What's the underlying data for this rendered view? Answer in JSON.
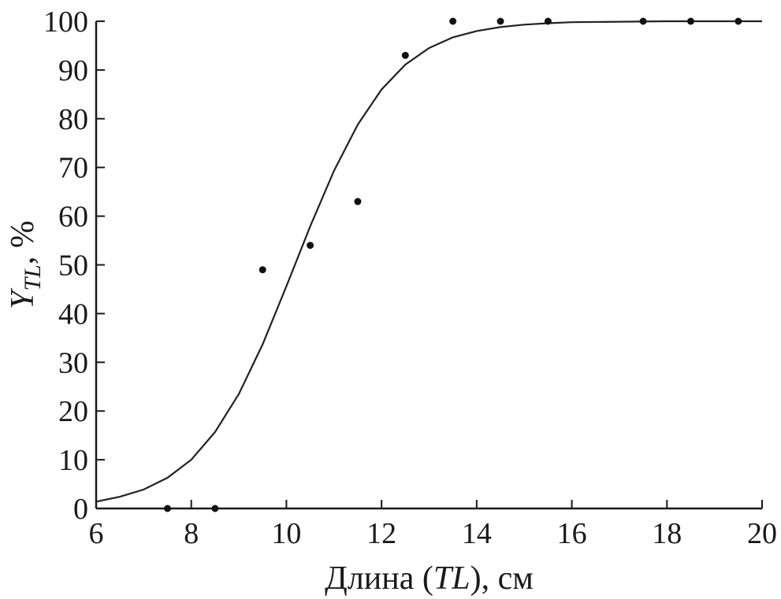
{
  "chart_data": {
    "type": "scatter",
    "title": "",
    "xlabel": {
      "prefix": "Длина (",
      "italic": "TL",
      "suffix": "), см"
    },
    "ylabel": {
      "main": "Y",
      "subscript": "TL",
      "suffix": ", %"
    },
    "xlim": [
      6,
      20
    ],
    "ylim": [
      0,
      100
    ],
    "x_ticks": [
      6,
      8,
      10,
      12,
      14,
      16,
      18,
      20
    ],
    "y_ticks": [
      0,
      10,
      20,
      30,
      40,
      50,
      60,
      70,
      80,
      90,
      100
    ],
    "grid": false,
    "series": [
      {
        "kind": "points",
        "x": [
          7.5,
          8.5,
          9.5,
          10.5,
          11.5,
          12.5,
          13.5,
          14.5,
          15.5,
          17.5,
          18.5,
          19.5
        ],
        "y": [
          0,
          0,
          49,
          54,
          63,
          93,
          100,
          100,
          100,
          100,
          100,
          100
        ]
      },
      {
        "kind": "curve",
        "x": [
          6,
          6.5,
          7,
          7.5,
          8,
          8.5,
          9,
          9.5,
          10,
          10.5,
          11,
          11.5,
          12,
          12.5,
          13,
          13.5,
          14,
          14.5,
          15,
          15.5,
          16,
          17,
          18,
          19,
          20
        ],
        "y": [
          1.4,
          2.4,
          3.9,
          6.3,
          10.0,
          15.7,
          23.5,
          33.7,
          45.6,
          57.9,
          69.3,
          78.8,
          86.0,
          91.1,
          94.5,
          96.7,
          98.0,
          98.8,
          99.3,
          99.6,
          99.8,
          99.9,
          100,
          100,
          100
        ]
      }
    ]
  }
}
